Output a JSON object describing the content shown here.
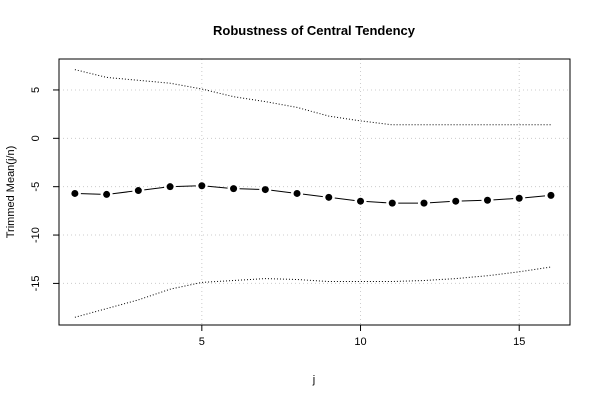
{
  "chart_data": {
    "type": "line",
    "title": "Robustness of Central Tendency",
    "xlabel": "j",
    "ylabel": "Trimmed Mean(j/n)",
    "xlim": [
      0.5,
      16.6
    ],
    "ylim": [
      -19.3,
      8.2
    ],
    "x_ticks": [
      5,
      10,
      15
    ],
    "y_ticks": [
      -15,
      -10,
      -5,
      0,
      5
    ],
    "grid": true,
    "x": [
      1,
      2,
      3,
      4,
      5,
      6,
      7,
      8,
      9,
      10,
      11,
      12,
      13,
      14,
      15,
      16
    ],
    "series": [
      {
        "style": "line-with-points",
        "values": [
          -5.7,
          -5.8,
          -5.4,
          -5.0,
          -4.9,
          -5.2,
          -5.3,
          -5.7,
          -6.1,
          -6.5,
          -6.7,
          -6.7,
          -6.5,
          -6.4,
          -6.2,
          -5.9
        ]
      },
      {
        "style": "dotted",
        "values": [
          7.1,
          6.3,
          6.0,
          5.7,
          5.1,
          4.3,
          3.8,
          3.2,
          2.3,
          1.8,
          1.4,
          1.4,
          1.4,
          1.4,
          1.4,
          1.4
        ]
      },
      {
        "style": "dotted",
        "values": [
          -18.5,
          -17.6,
          -16.7,
          -15.6,
          -14.9,
          -14.7,
          -14.5,
          -14.6,
          -14.8,
          -14.8,
          -14.8,
          -14.7,
          -14.5,
          -14.2,
          -13.8,
          -13.3
        ]
      }
    ]
  }
}
